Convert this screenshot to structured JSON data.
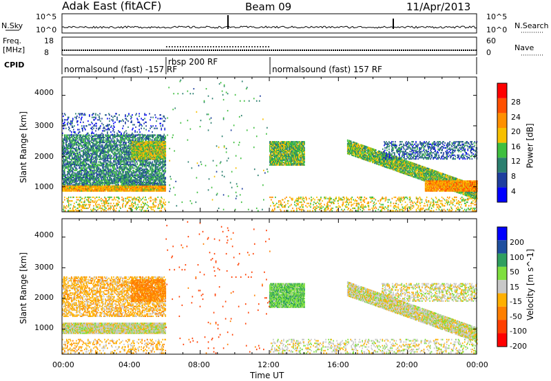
{
  "header": {
    "station": "Adak East (fitACF)",
    "beam": "Beam 09",
    "date": "11/Apr/2013"
  },
  "labels": {
    "nsky": "N.Sky",
    "nsearch": "N.Search",
    "freq": "Freq.",
    "mhz": "[MHz]",
    "nave": "Nave",
    "cpid": "CPID",
    "nsky_top": "10^5",
    "nsky_bottom": "10^0",
    "nsearch_top": "10^5",
    "nsearch_bottom": "10^0",
    "freq_top": "18",
    "freq_bottom": "8",
    "nave_top": "60",
    "nave_bottom": "0"
  },
  "cpid_segments": [
    {
      "start_ut": 0.0,
      "end_ut": 6.0,
      "label": "normalsound (fast) -157 RF"
    },
    {
      "start_ut": 6.0,
      "end_ut": 12.0,
      "label": "rbsp 200 RF"
    },
    {
      "start_ut": 12.0,
      "end_ut": 24.0,
      "label": "normalsound (fast) 157 RF"
    }
  ],
  "colors": {
    "power": [
      "#0000ff",
      "#1f3f9f",
      "#2b7f6f",
      "#3fbf3f",
      "#f7c000",
      "#ff9000",
      "#ff5000",
      "#ff0000"
    ],
    "velocity": [
      "#0000ff",
      "#1f4f9f",
      "#2f9f5f",
      "#7fdf3f",
      "#c8c8c8",
      "#ffb000",
      "#ff7f00",
      "#ff3f00",
      "#ff0000"
    ]
  },
  "chart_data": [
    {
      "type": "heatmap",
      "name": "power",
      "xlabel": "",
      "ylabel": "Slant Range [km]",
      "xlim": [
        0,
        24
      ],
      "ylim": [
        180,
        4600
      ],
      "yticks": [
        1000,
        2000,
        3000,
        4000
      ],
      "colorbar_label": "Power [dB]",
      "colorbar_ticks": [
        "4",
        "8",
        "12",
        "16",
        "20",
        "24",
        "28"
      ],
      "colorbar_range": [
        0,
        32
      ],
      "bands": [
        {
          "t0": 0.0,
          "t1": 6.0,
          "r0": 850,
          "r1": 1050,
          "value": 20,
          "density": 0.95
        },
        {
          "t0": 0.0,
          "t1": 6.0,
          "r0": 1050,
          "r1": 1400,
          "value": 10,
          "density": 0.7
        },
        {
          "t0": 0.0,
          "t1": 6.0,
          "r0": 1400,
          "r1": 2700,
          "value": 10,
          "density": 0.55
        },
        {
          "t0": 4.0,
          "t1": 6.0,
          "r0": 1900,
          "r1": 2500,
          "value": 16,
          "density": 0.8
        },
        {
          "t0": 0.0,
          "t1": 6.0,
          "r0": 2700,
          "r1": 3400,
          "value": 6,
          "density": 0.12
        },
        {
          "t0": 12.0,
          "t1": 14.0,
          "r0": 1700,
          "r1": 2500,
          "value": 14,
          "density": 0.85
        },
        {
          "t0": 16.5,
          "t1": 24.0,
          "r0": 2300,
          "r1": 800,
          "value": 14,
          "density": 0.85
        },
        {
          "t0": 21.0,
          "t1": 24.0,
          "r0": 1200,
          "r1": 850,
          "value": 22,
          "density": 0.9
        },
        {
          "t0": 18.5,
          "t1": 24.0,
          "r0": 2500,
          "r1": 1900,
          "value": 8,
          "density": 0.35
        },
        {
          "t0": 0.0,
          "t1": 6.0,
          "r0": 200,
          "r1": 650,
          "value": 18,
          "density": 0.2
        },
        {
          "t0": 12.0,
          "t1": 24.0,
          "r0": 200,
          "r1": 650,
          "value": 18,
          "density": 0.2
        },
        {
          "t0": 6.0,
          "t1": 12.0,
          "r0": 200,
          "r1": 4500,
          "value": 12,
          "density": 0.01
        }
      ]
    },
    {
      "type": "heatmap",
      "name": "velocity",
      "xlabel": "Time UT",
      "ylabel": "Slant Range [km]",
      "xlim": [
        0,
        24
      ],
      "ylim": [
        180,
        4600
      ],
      "yticks": [
        1000,
        2000,
        3000,
        4000
      ],
      "xticks": [
        "00:00",
        "04:00",
        "08:00",
        "12:00",
        "16:00",
        "20:00",
        "00:00"
      ],
      "colorbar_label": "Velocity [m s^-1]",
      "colorbar_ticks": [
        "200",
        "100",
        "50",
        "15",
        "-15",
        "-50",
        "-100",
        "-200"
      ],
      "bands": [
        {
          "t0": 0.0,
          "t1": 6.0,
          "r0": 850,
          "r1": 1200,
          "value": 0,
          "density": 0.95
        },
        {
          "t0": 0.0,
          "t1": 6.0,
          "r0": 1400,
          "r1": 2700,
          "value": -30,
          "density": 0.45
        },
        {
          "t0": 4.0,
          "t1": 6.0,
          "r0": 1900,
          "r1": 2600,
          "value": -70,
          "density": 0.6
        },
        {
          "t0": 12.0,
          "t1": 14.0,
          "r0": 1700,
          "r1": 2500,
          "value": 40,
          "density": 0.9
        },
        {
          "t0": 16.5,
          "t1": 24.0,
          "r0": 2300,
          "r1": 800,
          "value": 0,
          "density": 0.85
        },
        {
          "t0": 18.5,
          "t1": 24.0,
          "r0": 2500,
          "r1": 1900,
          "value": 0,
          "density": 0.35
        },
        {
          "t0": 0.0,
          "t1": 6.0,
          "r0": 200,
          "r1": 650,
          "value": -30,
          "density": 0.2
        },
        {
          "t0": 12.0,
          "t1": 24.0,
          "r0": 200,
          "r1": 650,
          "value": 0,
          "density": 0.2
        },
        {
          "t0": 6.0,
          "t1": 12.0,
          "r0": 200,
          "r1": 4500,
          "value": -120,
          "density": 0.01
        }
      ]
    }
  ]
}
